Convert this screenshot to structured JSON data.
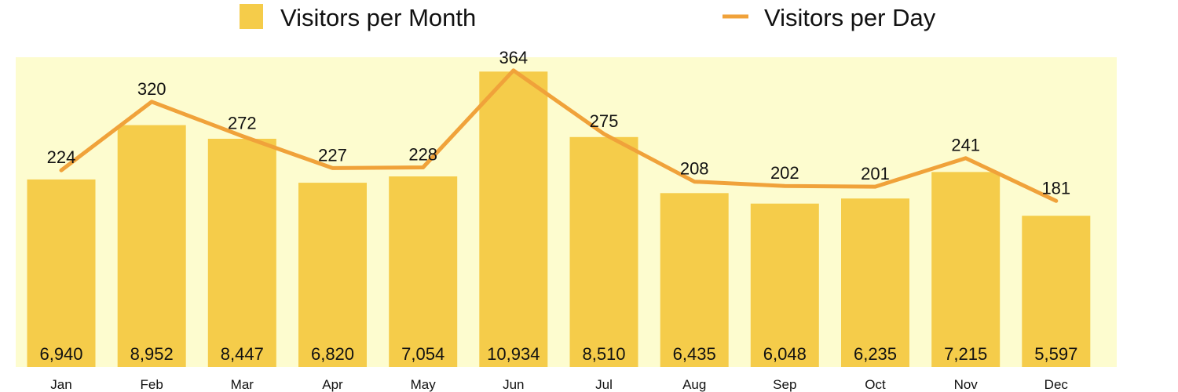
{
  "chart_data": {
    "type": "bar",
    "categories": [
      "Jan",
      "Feb",
      "Mar",
      "Apr",
      "May",
      "Jun",
      "Jul",
      "Aug",
      "Sep",
      "Oct",
      "Nov",
      "Dec"
    ],
    "series": [
      {
        "name": "Visitors per Month",
        "type": "bar",
        "values": [
          6940,
          8952,
          8447,
          6820,
          7054,
          10934,
          8510,
          6435,
          6048,
          6235,
          7215,
          5597
        ],
        "labels": [
          "6,940",
          "8,952",
          "8,447",
          "6,820",
          "7,054",
          "10,934",
          "8,510",
          "6,435",
          "6,048",
          "6,235",
          "7,215",
          "5,597"
        ],
        "color": "#f5cc4a"
      },
      {
        "name": "Visitors per Day",
        "type": "line",
        "values": [
          224,
          320,
          272,
          227,
          228,
          364,
          275,
          208,
          202,
          201,
          241,
          181
        ],
        "labels": [
          "224",
          "320",
          "272",
          "227",
          "228",
          "364",
          "275",
          "208",
          "202",
          "201",
          "241",
          "181"
        ],
        "color": "#f0a23a"
      }
    ],
    "ylim_bars": [
      0,
      11350
    ],
    "ylim_line": [
      0,
      400
    ],
    "plot_background": "#fdfccf",
    "grid": false,
    "legend_position": "top"
  }
}
